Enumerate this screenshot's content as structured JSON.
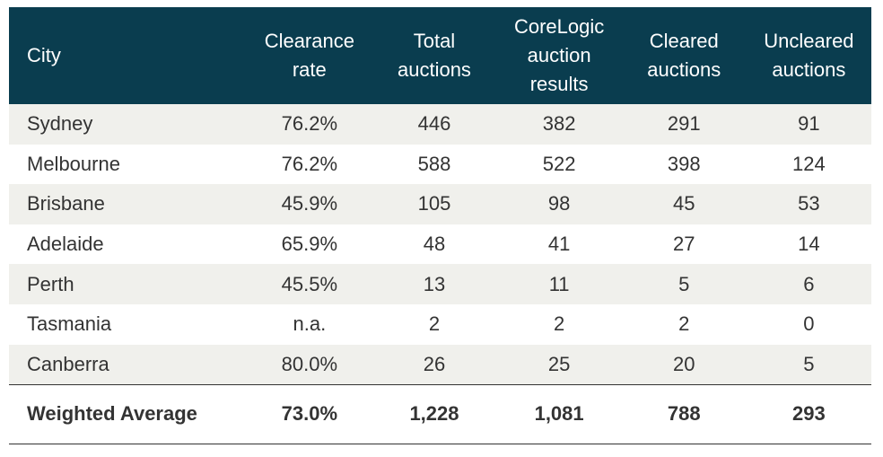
{
  "table": {
    "header": [
      "City",
      "Clearance rate",
      "Total auctions",
      "CoreLogic auction results",
      "Cleared auctions",
      "Uncleared auctions"
    ],
    "rows": [
      [
        "Sydney",
        "76.2%",
        "446",
        "382",
        "291",
        "91"
      ],
      [
        "Melbourne",
        "76.2%",
        "588",
        "522",
        "398",
        "124"
      ],
      [
        "Brisbane",
        "45.9%",
        "105",
        "98",
        "45",
        "53"
      ],
      [
        "Adelaide",
        "65.9%",
        "48",
        "41",
        "27",
        "14"
      ],
      [
        "Perth",
        "45.5%",
        "13",
        "11",
        "5",
        "6"
      ],
      [
        "Tasmania",
        "n.a.",
        "2",
        "2",
        "2",
        "0"
      ],
      [
        "Canberra",
        "80.0%",
        "26",
        "25",
        "20",
        "5"
      ]
    ],
    "footer": [
      "Weighted Average",
      "73.0%",
      "1,228",
      "1,081",
      "788",
      "293"
    ]
  }
}
